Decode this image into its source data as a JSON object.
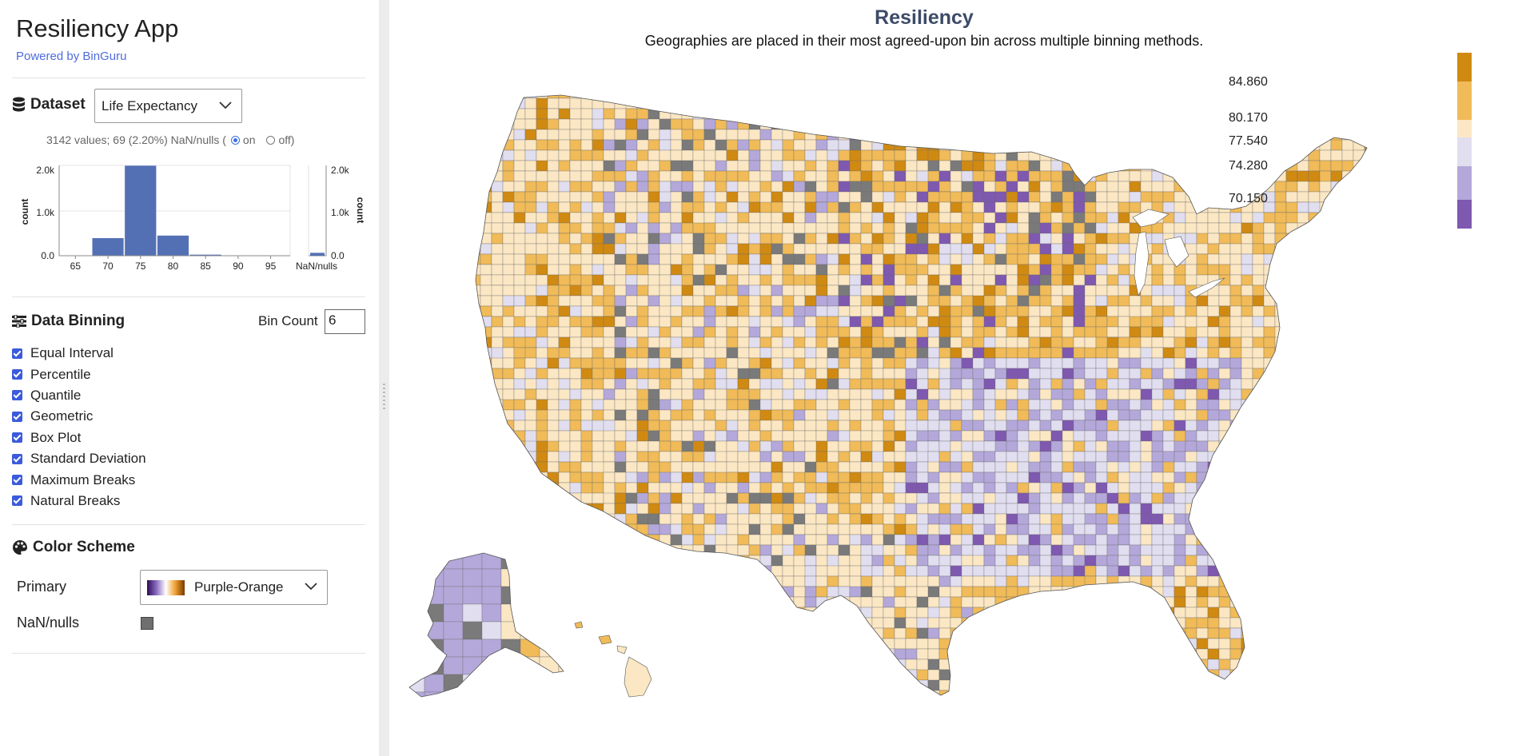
{
  "app": {
    "title": "Resiliency App",
    "powered_by": "Powered by BinGuru"
  },
  "dataset": {
    "label": "Dataset",
    "selected": "Life Expectancy",
    "stats_text": "3142 values; 69 (2.20%) NaN/nulls (",
    "radio_on": "on",
    "radio_off": "off)"
  },
  "histogram": {
    "y_axis_label": "count",
    "y_ticks": [
      "2.0k",
      "1.0k",
      "0.0"
    ],
    "x_ticks": [
      "65",
      "70",
      "75",
      "80",
      "85",
      "90",
      "95"
    ],
    "nan_label": "NaN/nulls",
    "nan_y_ticks": [
      "2.0k",
      "1.0k",
      "0.0"
    ],
    "nan_axis_label": "count",
    "bin_edges": [
      62.5,
      67.5,
      72.5,
      77.5,
      82.5,
      87.5,
      92.5,
      97.5
    ],
    "counts": [
      3,
      420,
      2130,
      480,
      30,
      8,
      2
    ],
    "nan_count": 69,
    "x_domain": [
      62.5,
      98
    ],
    "y_max": 2130,
    "bar_color": "#5470b5"
  },
  "binning": {
    "label": "Data Binning",
    "bin_count_label": "Bin Count",
    "bin_count_value": "6",
    "methods": [
      "Equal Interval",
      "Percentile",
      "Quantile",
      "Geometric",
      "Box Plot",
      "Standard Deviation",
      "Maximum Breaks",
      "Natural Breaks"
    ]
  },
  "color_scheme": {
    "label": "Color Scheme",
    "primary_label": "Primary",
    "primary_value": "Purple-Orange",
    "nan_label": "NaN/nulls",
    "nan_color": "#6f6f6f"
  },
  "map": {
    "title": "Resiliency",
    "subtitle": "Geographies are placed in their most agreed-upon bin across multiple binning methods.",
    "legend": {
      "colors": [
        "#d08a12",
        "#f0bb58",
        "#fbe7c3",
        "#e1def0",
        "#b4a8da",
        "#7f58b0"
      ],
      "labels": [
        "84.860",
        "80.170",
        "77.540",
        "74.280",
        "70.150"
      ]
    },
    "palette": {
      "orange_dark": "#d08a12",
      "orange": "#f0bb58",
      "cream": "#fbe7c3",
      "lavender_light": "#e1def0",
      "lavender": "#b4a8da",
      "purple": "#7f58b0",
      "nan_gray": "#7a7a7a"
    }
  }
}
